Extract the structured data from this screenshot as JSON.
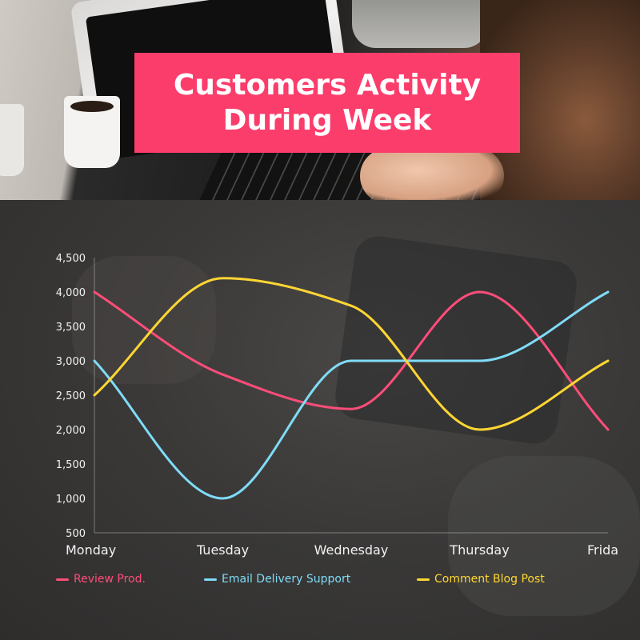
{
  "title": "Customers Activity\nDuring Week",
  "colors": {
    "title_bg": "#fb3d6c",
    "review": "#ff4d79",
    "email": "#7fdcf7",
    "blog": "#ffd633",
    "axis_text": "#f2f2f2"
  },
  "chart_data": {
    "type": "line",
    "smooth": true,
    "categories": [
      "Monday",
      "Tuesday",
      "Wednesday",
      "Thursday",
      "Frida"
    ],
    "ylim": [
      500,
      4500
    ],
    "yticks": [
      "500",
      "1,000",
      "1,500",
      "2,000",
      "2,500",
      "3,000",
      "3,500",
      "4,000",
      "4,500"
    ],
    "grid": false,
    "legend_position": "bottom",
    "series": [
      {
        "name": "Review Prod.",
        "color": "#ff4d79",
        "values": [
          4000,
          2800,
          2300,
          4000,
          2000
        ]
      },
      {
        "name": "Email Delivery Support",
        "color": "#7fdcf7",
        "values": [
          3000,
          1000,
          3000,
          3000,
          4000
        ]
      },
      {
        "name": "Comment Blog Post",
        "color": "#ffd633",
        "values": [
          2500,
          4200,
          3800,
          2000,
          3000
        ]
      }
    ]
  }
}
